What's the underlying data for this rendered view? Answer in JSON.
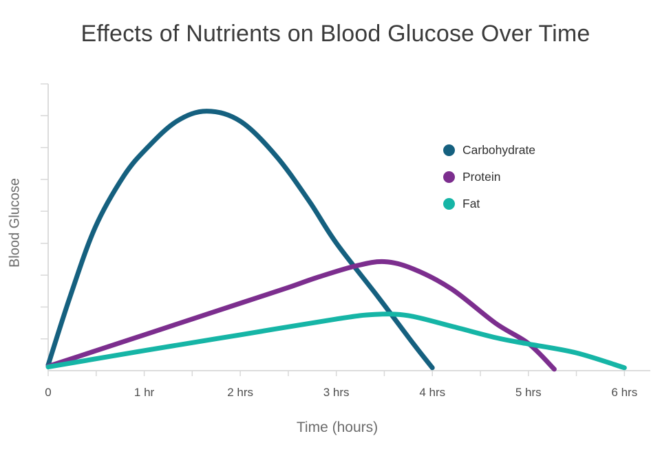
{
  "chart_data": {
    "type": "line",
    "title": "Effects of Nutrients on Blood Glucose Over Time",
    "xlabel": "Time (hours)",
    "ylabel": "Blood Glucose",
    "xlim": [
      0,
      6.27
    ],
    "ylim": [
      0,
      100
    ],
    "grid": false,
    "legend_position": "inside-upper-right",
    "x_ticks": [
      0,
      0.5,
      1,
      1.5,
      2,
      2.5,
      3,
      3.5,
      4,
      4.5,
      5,
      5.5,
      6
    ],
    "x_tick_labels": [
      {
        "x": 0,
        "label": "0"
      },
      {
        "x": 1,
        "label": "1 hr"
      },
      {
        "x": 2,
        "label": "2 hrs"
      },
      {
        "x": 3,
        "label": "3 hrs"
      },
      {
        "x": 4,
        "label": "4 hrs"
      },
      {
        "x": 5,
        "label": "5 hrs"
      },
      {
        "x": 6,
        "label": "6 hrs"
      }
    ],
    "y_ticks": [
      11.1,
      22.2,
      33.3,
      44.4,
      55.6,
      66.7,
      77.8,
      88.9,
      100
    ],
    "y_tick_labels": [],
    "series": [
      {
        "name": "Carbohydrate",
        "color": "#15607f",
        "points": [
          [
            0,
            2
          ],
          [
            0.23,
            26
          ],
          [
            0.49,
            50
          ],
          [
            0.79,
            68
          ],
          [
            1.04,
            78
          ],
          [
            1.34,
            87
          ],
          [
            1.65,
            90.5
          ],
          [
            2.0,
            87
          ],
          [
            2.37,
            75
          ],
          [
            2.72,
            59
          ],
          [
            3.0,
            44.5
          ],
          [
            3.44,
            25.5
          ],
          [
            3.8,
            9.5
          ],
          [
            4.0,
            1
          ]
        ]
      },
      {
        "name": "Protein",
        "color": "#7c2e8e",
        "points": [
          [
            0,
            1.5
          ],
          [
            0.5,
            7
          ],
          [
            1.0,
            12.5
          ],
          [
            1.5,
            18
          ],
          [
            2.0,
            23.5
          ],
          [
            2.5,
            29
          ],
          [
            2.8,
            32.5
          ],
          [
            3.2,
            36.5
          ],
          [
            3.5,
            38
          ],
          [
            3.8,
            35.5
          ],
          [
            4.2,
            28.5
          ],
          [
            4.66,
            16.5
          ],
          [
            5.0,
            9.5
          ],
          [
            5.27,
            0.5
          ]
        ]
      },
      {
        "name": "Fat",
        "color": "#16b5a6",
        "points": [
          [
            0,
            1.3
          ],
          [
            1.0,
            7
          ],
          [
            2.0,
            12.5
          ],
          [
            3.0,
            18
          ],
          [
            3.4,
            19.6
          ],
          [
            3.75,
            19.2
          ],
          [
            4.2,
            15.5
          ],
          [
            4.66,
            11.5
          ],
          [
            5.0,
            9.3
          ],
          [
            5.5,
            6.2
          ],
          [
            6.0,
            1
          ]
        ]
      }
    ],
    "colors": {
      "axis": "#dcdcdc",
      "tick": "#d8d8d8",
      "title_text": "#3b3b3b",
      "axis_label_text": "#6b6b6b",
      "tick_label_text": "#4d4d4d",
      "legend_text": "#2f2f2f",
      "background": "#ffffff"
    }
  }
}
